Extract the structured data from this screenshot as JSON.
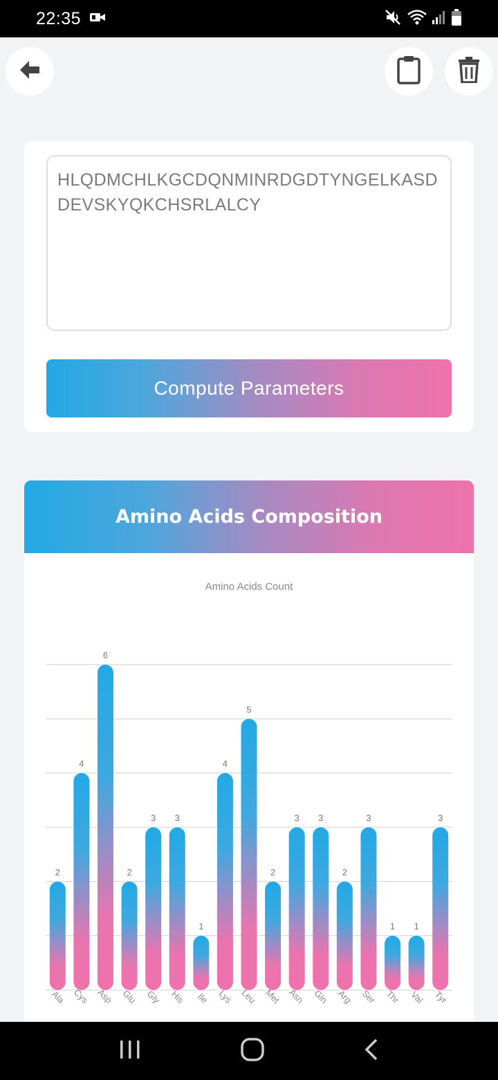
{
  "status": {
    "time": "22:35"
  },
  "icons": {
    "back": "arrow-left-icon",
    "clipboard": "clipboard-icon",
    "trash": "trash-icon",
    "recents": "recent-apps-icon",
    "home": "home-icon",
    "nav_back": "chevron-left-icon"
  },
  "input": {
    "sequence": "HLQDMCHLKGCDQNMINRDGDTYNGELKASDDEVSKYQKCHSRLALCY",
    "compute_label": "Compute Parameters"
  },
  "composition": {
    "header": "Amino Acids Composition"
  },
  "colors": {
    "accent_blue": "#22a9e4",
    "accent_pink": "#ef72ab"
  },
  "chart_data": {
    "type": "bar",
    "title": "Amino Acids Count",
    "categories": [
      "Ala",
      "Cys",
      "Asp",
      "Glu",
      "Gly",
      "His",
      "Ile",
      "Lys",
      "Leu",
      "Met",
      "Asn",
      "Gln",
      "Arg",
      "Ser",
      "Thr",
      "Val",
      "Tyr"
    ],
    "values": [
      2,
      4,
      6,
      2,
      3,
      3,
      1,
      4,
      5,
      2,
      3,
      3,
      2,
      3,
      1,
      1,
      3
    ],
    "ylim": [
      0,
      6
    ],
    "grid": true,
    "data_labels": true
  }
}
